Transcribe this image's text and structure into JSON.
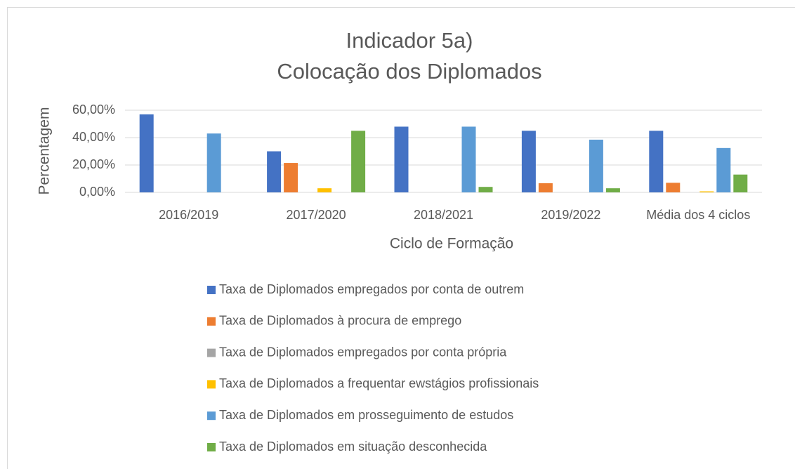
{
  "chart_data": {
    "type": "bar",
    "title": [
      "Indicador 5a)",
      "Colocação dos Diplomados"
    ],
    "x_label": "Ciclo de Formação",
    "y_label": "Percentagem",
    "categories": [
      "2016/2019",
      "2017/2020",
      "2018/2021",
      "2019/2022",
      "Média dos 4 ciclos"
    ],
    "series": [
      {
        "name": "Taxa de Diplomados empregados por conta de outrem",
        "color": "#4472c4",
        "values": [
          57,
          30,
          48,
          45,
          45
        ]
      },
      {
        "name": "Taxa de Diplomados à procura de emprego",
        "color": "#ed7d31",
        "values": [
          0,
          21.5,
          0,
          6.7,
          7
        ]
      },
      {
        "name": "Taxa de Diplomados empregados por conta própria",
        "color": "#a5a5a5",
        "values": [
          0,
          0,
          0,
          0,
          0
        ]
      },
      {
        "name": "Taxa de Diplomados a frequentar ewstágios profissionais",
        "color": "#ffc000",
        "values": [
          0,
          3,
          0,
          0,
          0.75
        ]
      },
      {
        "name": "Taxa de Diplomados em prosseguimento de estudos",
        "color": "#5b9bd5",
        "values": [
          43,
          0,
          48,
          38.5,
          32.4
        ]
      },
      {
        "name": "Taxa de Diplomados em situação desconhecida",
        "color": "#70ad47",
        "values": [
          0,
          45,
          4,
          3,
          13
        ]
      }
    ],
    "ylim": [
      0,
      60
    ],
    "yticks": [
      {
        "value": 0,
        "label": "0,00%"
      },
      {
        "value": 20,
        "label": "20,00%"
      },
      {
        "value": 40,
        "label": "40,00%"
      },
      {
        "value": 60,
        "label": "60,00%"
      }
    ],
    "grid": true,
    "legend": "bottom"
  }
}
